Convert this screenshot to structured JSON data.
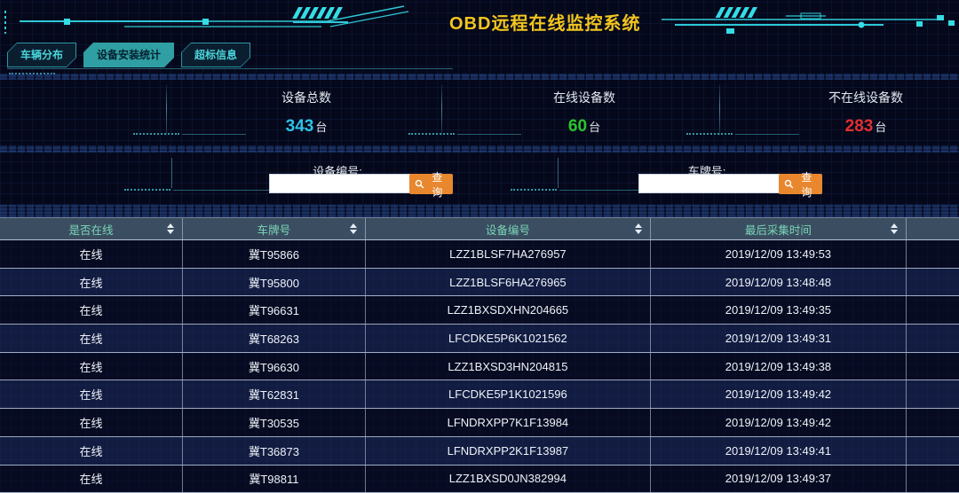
{
  "title": "OBD远程在线监控系统",
  "tabs": [
    {
      "id": "vehicle-distribution",
      "label": "车辆分布",
      "active": false
    },
    {
      "id": "device-install-stats",
      "label": "设备安装统计",
      "active": true
    },
    {
      "id": "exceed-info",
      "label": "超标信息",
      "active": false
    }
  ],
  "stats": [
    {
      "label": "设备总数",
      "value": "343",
      "unit": "台",
      "color": "#2fc3e8"
    },
    {
      "label": "在线设备数",
      "value": "60",
      "unit": "台",
      "color": "#28c72c"
    },
    {
      "label": "不在线设备数",
      "value": "283",
      "unit": "台",
      "color": "#e23030"
    }
  ],
  "search": {
    "device": {
      "label": "设备编号:",
      "value": "",
      "button": "查询"
    },
    "plate": {
      "label": "车牌号:",
      "value": "",
      "button": "查询"
    }
  },
  "table": {
    "headers": [
      "是否在线",
      "车牌号",
      "设备编号",
      "最后采集时间"
    ],
    "rows": [
      [
        "在线",
        "冀T95866",
        "LZZ1BLSF7HA276957",
        "2019/12/09 13:49:53"
      ],
      [
        "在线",
        "冀T95800",
        "LZZ1BLSF6HA276965",
        "2019/12/09 13:48:48"
      ],
      [
        "在线",
        "冀T96631",
        "LZZ1BXSDXHN204665",
        "2019/12/09 13:49:35"
      ],
      [
        "在线",
        "冀T68263",
        "LFCDKE5P6K1021562",
        "2019/12/09 13:49:31"
      ],
      [
        "在线",
        "冀T96630",
        "LZZ1BXSD3HN204815",
        "2019/12/09 13:49:38"
      ],
      [
        "在线",
        "冀T62831",
        "LFCDKE5P1K1021596",
        "2019/12/09 13:49:42"
      ],
      [
        "在线",
        "冀T30535",
        "LFNDRXPP7K1F13984",
        "2019/12/09 13:49:42"
      ],
      [
        "在线",
        "冀T36873",
        "LFNDRXPP2K1F13987",
        "2019/12/09 13:49:41"
      ],
      [
        "在线",
        "冀T98811",
        "LZZ1BXSD0JN382994",
        "2019/12/09 13:49:37"
      ]
    ]
  },
  "colors": {
    "accent_cyan": "#35dce4",
    "title_gold": "#f2c51f",
    "button_orange": "#e8872e",
    "online_green": "#28c72c",
    "offline_red": "#e23030",
    "total_cyan": "#2fc3e8",
    "table_header_bg": "#3b4e61",
    "table_header_text": "#79d6b8"
  }
}
